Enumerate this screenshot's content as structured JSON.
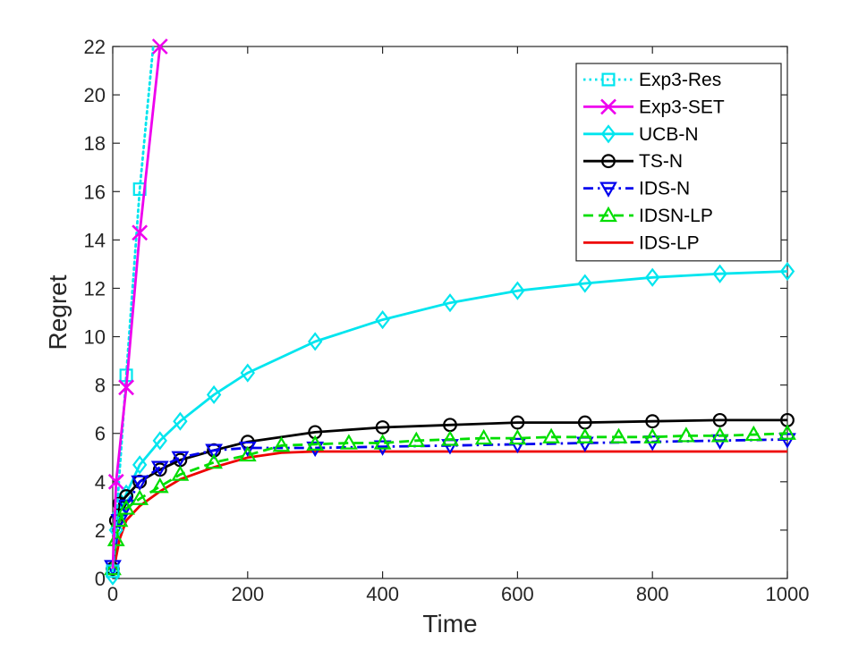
{
  "chart_data": {
    "type": "line",
    "title": "",
    "xlabel": "Time",
    "ylabel": "Regret",
    "xlim": [
      0,
      1000
    ],
    "ylim": [
      0,
      22
    ],
    "xticks": [
      0,
      200,
      400,
      600,
      800,
      1000
    ],
    "yticks": [
      0,
      2,
      4,
      6,
      8,
      10,
      12,
      14,
      16,
      18,
      20,
      22
    ],
    "xtick_labels": [
      "0",
      "200",
      "400",
      "600",
      "800",
      "1000"
    ],
    "ytick_labels": [
      "0",
      "2",
      "4",
      "6",
      "8",
      "10",
      "12",
      "14",
      "16",
      "18",
      "20",
      "22"
    ],
    "grid": false,
    "legend_position": "top-right",
    "series": [
      {
        "name": "Exp3-Res",
        "color": "#00e5ee",
        "line_style": "dotted",
        "marker": "square",
        "points": [
          [
            0,
            0.3
          ],
          [
            20,
            8.4
          ],
          [
            40,
            16.1
          ],
          [
            60,
            22.0
          ]
        ],
        "marker_points": [
          [
            0,
            0.3
          ],
          [
            20,
            8.4
          ],
          [
            40,
            16.1
          ]
        ]
      },
      {
        "name": "Exp3-SET",
        "color": "#ee00ee",
        "line_style": "solid",
        "marker": "x",
        "points": [
          [
            0,
            0.4
          ],
          [
            5,
            4.0
          ],
          [
            20,
            7.9
          ],
          [
            40,
            14.3
          ],
          [
            70,
            22.0
          ]
        ],
        "marker_points": [
          [
            5,
            4.0
          ],
          [
            20,
            7.9
          ],
          [
            40,
            14.3
          ],
          [
            70,
            22.0
          ]
        ]
      },
      {
        "name": "UCB-N",
        "color": "#00e5ee",
        "line_style": "solid",
        "marker": "diamond",
        "points": [
          [
            0,
            0.1
          ],
          [
            5,
            2.0
          ],
          [
            10,
            2.7
          ],
          [
            20,
            3.5
          ],
          [
            40,
            4.7
          ],
          [
            70,
            5.7
          ],
          [
            100,
            6.5
          ],
          [
            150,
            7.6
          ],
          [
            200,
            8.5
          ],
          [
            300,
            9.8
          ],
          [
            400,
            10.7
          ],
          [
            500,
            11.4
          ],
          [
            600,
            11.9
          ],
          [
            700,
            12.2
          ],
          [
            800,
            12.45
          ],
          [
            900,
            12.6
          ],
          [
            1000,
            12.7
          ]
        ]
      },
      {
        "name": "TS-N",
        "color": "#000000",
        "line_style": "solid",
        "marker": "circle",
        "points": [
          [
            0,
            0.4
          ],
          [
            5,
            2.4
          ],
          [
            10,
            3.1
          ],
          [
            20,
            3.4
          ],
          [
            40,
            4.0
          ],
          [
            70,
            4.5
          ],
          [
            100,
            4.9
          ],
          [
            150,
            5.3
          ],
          [
            200,
            5.65
          ],
          [
            300,
            6.05
          ],
          [
            400,
            6.25
          ],
          [
            500,
            6.35
          ],
          [
            600,
            6.45
          ],
          [
            700,
            6.45
          ],
          [
            800,
            6.5
          ],
          [
            900,
            6.55
          ],
          [
            1000,
            6.55
          ]
        ]
      },
      {
        "name": "IDS-N",
        "color": "#0000ee",
        "line_style": "dashdot",
        "marker": "triangle-down",
        "points": [
          [
            0,
            0.5
          ],
          [
            10,
            2.4
          ],
          [
            20,
            3.0
          ],
          [
            40,
            4.0
          ],
          [
            70,
            4.6
          ],
          [
            100,
            5.0
          ],
          [
            150,
            5.3
          ],
          [
            200,
            5.4
          ],
          [
            300,
            5.4
          ],
          [
            400,
            5.45
          ],
          [
            500,
            5.5
          ],
          [
            600,
            5.55
          ],
          [
            700,
            5.6
          ],
          [
            800,
            5.65
          ],
          [
            900,
            5.7
          ],
          [
            1000,
            5.75
          ]
        ]
      },
      {
        "name": "IDSN-LP",
        "color": "#00dd00",
        "line_style": "dashed",
        "marker": "triangle-up",
        "points": [
          [
            0,
            0.4
          ],
          [
            5,
            1.6
          ],
          [
            10,
            2.4
          ],
          [
            20,
            2.9
          ],
          [
            40,
            3.3
          ],
          [
            70,
            3.8
          ],
          [
            100,
            4.3
          ],
          [
            150,
            4.8
          ],
          [
            200,
            5.1
          ],
          [
            250,
            5.5
          ],
          [
            300,
            5.55
          ],
          [
            350,
            5.6
          ],
          [
            400,
            5.6
          ],
          [
            450,
            5.7
          ],
          [
            500,
            5.75
          ],
          [
            550,
            5.8
          ],
          [
            600,
            5.8
          ],
          [
            650,
            5.85
          ],
          [
            700,
            5.85
          ],
          [
            750,
            5.85
          ],
          [
            800,
            5.85
          ],
          [
            850,
            5.9
          ],
          [
            900,
            5.9
          ],
          [
            950,
            5.95
          ],
          [
            1000,
            6.0
          ]
        ]
      },
      {
        "name": "IDS-LP",
        "color": "#ee0000",
        "line_style": "solid",
        "marker": "none",
        "points": [
          [
            0,
            0.1
          ],
          [
            5,
            0.9
          ],
          [
            10,
            1.6
          ],
          [
            20,
            2.4
          ],
          [
            40,
            3.0
          ],
          [
            70,
            3.6
          ],
          [
            100,
            4.1
          ],
          [
            150,
            4.6
          ],
          [
            200,
            5.0
          ],
          [
            250,
            5.2
          ],
          [
            300,
            5.25
          ],
          [
            400,
            5.25
          ],
          [
            600,
            5.25
          ],
          [
            800,
            5.25
          ],
          [
            1000,
            5.25
          ]
        ]
      }
    ]
  }
}
